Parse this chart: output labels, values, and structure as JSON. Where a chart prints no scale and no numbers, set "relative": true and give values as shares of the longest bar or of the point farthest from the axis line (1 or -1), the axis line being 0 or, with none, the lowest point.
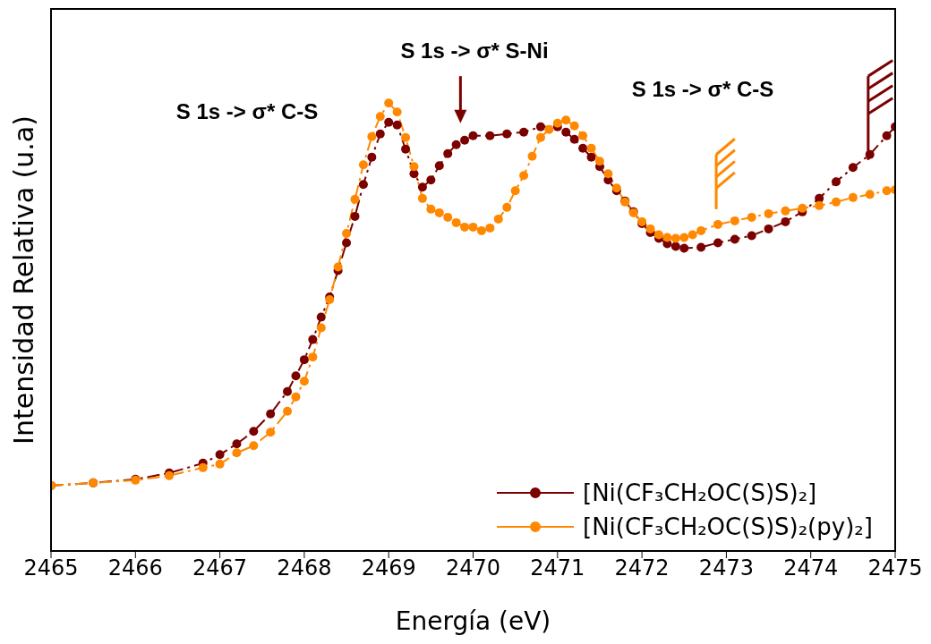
{
  "chart_data": {
    "type": "line",
    "xlabel": "Energía (eV)",
    "ylabel": "Intensidad Relativa (u.a)",
    "relative": true,
    "xlim": [
      2465,
      2475
    ],
    "xticks": [
      2465,
      2466,
      2467,
      2468,
      2469,
      2470,
      2471,
      2472,
      2473,
      2474,
      2475
    ],
    "legend": "bottom right",
    "marker": "circle",
    "line_style": "dashed",
    "annotations": [
      "S 1s -> σ* C-S",
      "S 1s -> σ* S-Ni",
      "S 1s -> σ* C-S"
    ],
    "series": [
      {
        "name": "[Ni(CF₃CH₂OC(S)S)₂]",
        "color": "#7b0000",
        "x": [
          2465,
          2465.5,
          2466,
          2466.4,
          2466.8,
          2467,
          2467.2,
          2467.4,
          2467.6,
          2467.8,
          2467.9,
          2468,
          2468.1,
          2468.2,
          2468.3,
          2468.4,
          2468.5,
          2468.6,
          2468.7,
          2468.8,
          2468.9,
          2469,
          2469.1,
          2469.2,
          2469.3,
          2469.4,
          2469.5,
          2469.6,
          2469.7,
          2469.8,
          2469.9,
          2470,
          2470.2,
          2470.4,
          2470.6,
          2470.8,
          2471,
          2471.1,
          2471.2,
          2471.3,
          2471.4,
          2471.5,
          2471.6,
          2471.7,
          2471.8,
          2471.9,
          2472,
          2472.1,
          2472.2,
          2472.3,
          2472.4,
          2472.5,
          2472.7,
          2472.9,
          2473.1,
          2473.3,
          2473.5,
          2473.7,
          2473.9,
          2474.1,
          2474.3,
          2474.5,
          2474.7,
          2474.9,
          2475
        ],
        "values": [
          0.146,
          0.152,
          0.16,
          0.174,
          0.196,
          0.215,
          0.239,
          0.267,
          0.306,
          0.356,
          0.391,
          0.427,
          0.472,
          0.522,
          0.567,
          0.626,
          0.688,
          0.747,
          0.818,
          0.879,
          0.931,
          0.957,
          0.951,
          0.897,
          0.842,
          0.812,
          0.828,
          0.86,
          0.887,
          0.907,
          0.917,
          0.927,
          0.927,
          0.931,
          0.935,
          0.947,
          0.947,
          0.935,
          0.919,
          0.899,
          0.879,
          0.858,
          0.828,
          0.804,
          0.781,
          0.757,
          0.731,
          0.711,
          0.698,
          0.686,
          0.68,
          0.676,
          0.678,
          0.688,
          0.696,
          0.704,
          0.719,
          0.735,
          0.757,
          0.787,
          0.824,
          0.856,
          0.885,
          0.927,
          0.947
        ]
      },
      {
        "name": "[Ni(CF₃CH₂OC(S)S)₂(py)₂]",
        "color": "#ff8800",
        "x": [
          2465,
          2465.5,
          2466,
          2466.4,
          2466.8,
          2467,
          2467.2,
          2467.4,
          2467.6,
          2467.8,
          2467.9,
          2468,
          2468.1,
          2468.2,
          2468.3,
          2468.4,
          2468.5,
          2468.6,
          2468.7,
          2468.8,
          2468.9,
          2469,
          2469.1,
          2469.2,
          2469.3,
          2469.4,
          2469.5,
          2469.6,
          2469.7,
          2469.8,
          2469.9,
          2470,
          2470.1,
          2470.2,
          2470.3,
          2470.4,
          2470.5,
          2470.6,
          2470.7,
          2470.8,
          2470.9,
          2471,
          2471.1,
          2471.2,
          2471.3,
          2471.4,
          2471.5,
          2471.6,
          2471.7,
          2471.8,
          2471.9,
          2472,
          2472.1,
          2472.2,
          2472.3,
          2472.4,
          2472.5,
          2472.6,
          2472.7,
          2472.9,
          2473.1,
          2473.3,
          2473.5,
          2473.7,
          2473.9,
          2474.1,
          2474.3,
          2474.5,
          2474.7,
          2474.9,
          2475
        ],
        "values": [
          0.146,
          0.152,
          0.158,
          0.168,
          0.186,
          0.194,
          0.219,
          0.235,
          0.265,
          0.312,
          0.344,
          0.379,
          0.433,
          0.498,
          0.561,
          0.634,
          0.709,
          0.785,
          0.862,
          0.925,
          0.97,
          1,
          0.98,
          0.923,
          0.858,
          0.787,
          0.763,
          0.755,
          0.745,
          0.733,
          0.723,
          0.723,
          0.715,
          0.721,
          0.741,
          0.767,
          0.804,
          0.838,
          0.881,
          0.923,
          0.941,
          0.955,
          0.962,
          0.949,
          0.927,
          0.899,
          0.87,
          0.842,
          0.81,
          0.779,
          0.755,
          0.735,
          0.719,
          0.706,
          0.7,
          0.698,
          0.7,
          0.706,
          0.715,
          0.729,
          0.737,
          0.745,
          0.753,
          0.759,
          0.765,
          0.771,
          0.779,
          0.789,
          0.796,
          0.804,
          0.806
        ]
      }
    ]
  }
}
